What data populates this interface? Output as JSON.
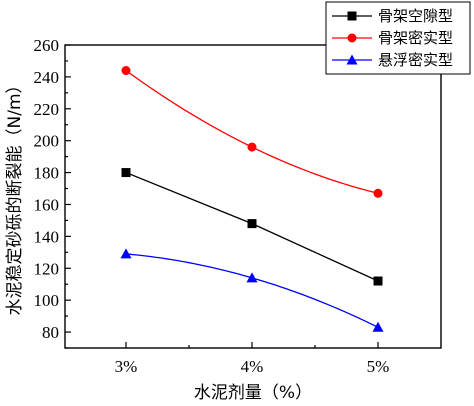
{
  "chart_data": {
    "type": "line",
    "title": "",
    "xlabel": "水泥剂量（%）",
    "ylabel": "水泥稳定砂砾的断裂能（N/m）",
    "categories": [
      "3%",
      "4%",
      "5%"
    ],
    "ylim": [
      70,
      260
    ],
    "yticks": [
      80,
      100,
      120,
      140,
      160,
      180,
      200,
      220,
      240,
      260
    ],
    "grid": false,
    "legend_position": "top-right",
    "series": [
      {
        "name": "骨架空隙型",
        "values": [
          180,
          148,
          112
        ],
        "color": "#000000",
        "marker": "square",
        "line": "straight"
      },
      {
        "name": "骨架密实型",
        "values": [
          244,
          196,
          167
        ],
        "color": "#ff0000",
        "marker": "circle",
        "line": "smooth"
      },
      {
        "name": "悬浮密实型",
        "values": [
          129,
          114,
          83
        ],
        "color": "#0000ff",
        "marker": "triangle",
        "line": "smooth"
      }
    ]
  }
}
